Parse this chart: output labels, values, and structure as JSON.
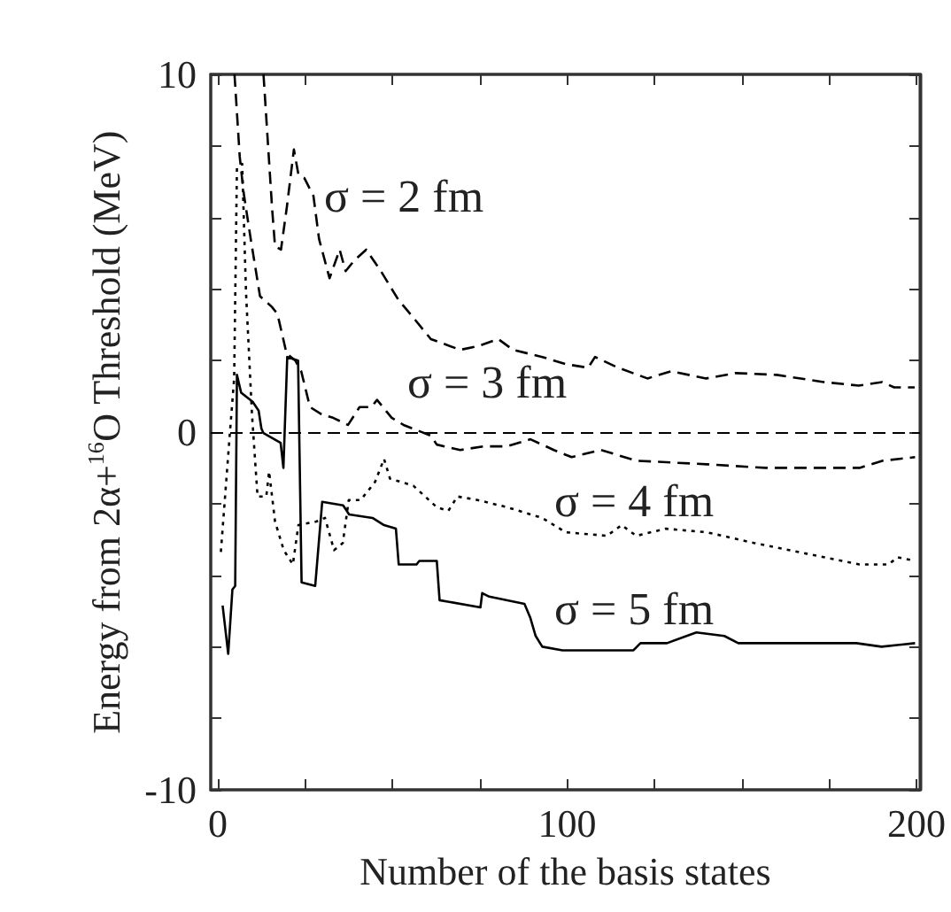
{
  "chart_data": {
    "type": "line",
    "xlabel": "Number of the basis states",
    "ylabel": "Energy from 2α+$^{16}$O Threshold (MeV)",
    "xlim": [
      -2,
      201
    ],
    "ylim": [
      -10,
      10
    ],
    "xticks": [
      0,
      {
        "value": 25,
        "label": null
      },
      {
        "value": 50,
        "label": null
      },
      {
        "value": 75,
        "label": null
      },
      100,
      {
        "value": 125,
        "label": null
      },
      {
        "value": 150,
        "label": null
      },
      {
        "value": 175,
        "label": null
      },
      200
    ],
    "yticks": [
      -10,
      {
        "value": -8,
        "label": null
      },
      {
        "value": -6,
        "label": null
      },
      {
        "value": -4,
        "label": null
      },
      {
        "value": -2,
        "label": null
      },
      0,
      {
        "value": 2,
        "label": null
      },
      {
        "value": 4,
        "label": null
      },
      {
        "value": 6,
        "label": null
      },
      {
        "value": 8,
        "label": null
      },
      10
    ],
    "grid": false,
    "marker": "none",
    "ref_lines": [
      {
        "axis": "y",
        "value": 0,
        "line_style": "dashed",
        "color": "#000000"
      }
    ],
    "annotations": [
      "σ = 2 fm",
      "σ = 3 fm",
      "σ = 4 fm",
      "σ = 5 fm"
    ],
    "series": [
      {
        "color": "#000000",
        "line_style": "dashed",
        "x": [
          13.1,
          15.6,
          16.4,
          18.1,
          19.8,
          21.8,
          23.1,
          24.8,
          27.4,
          29,
          32,
          34.9,
          36.6,
          39.1,
          42.5,
          46.7,
          51.7,
          56,
          61,
          69.4,
          74.4,
          80.3,
          84.5,
          92.9,
          99.6,
          106,
          108,
          114.6,
          123,
          129.7,
          139.8,
          148.2,
          160,
          173.4,
          183.5,
          190.2,
          193.6,
          199.5
        ],
        "values": [
          10,
          6.2,
          5.2,
          5.1,
          6.3,
          7.9,
          7.2,
          7.1,
          6.6,
          5.4,
          4.3,
          5.1,
          4.5,
          4.8,
          5.1,
          4.5,
          3.7,
          3.2,
          2.6,
          2.3,
          2.4,
          2.6,
          2.3,
          2.1,
          1.9,
          1.8,
          2.1,
          1.8,
          1.5,
          1.7,
          1.5,
          1.65,
          1.6,
          1.4,
          1.3,
          1.4,
          1.25,
          1.25
        ]
      },
      {
        "color": "#000000",
        "line_style": "dashed",
        "x": [
          4.8,
          6.3,
          7.4,
          9.6,
          12.1,
          15.5,
          17.1,
          19.7,
          22.2,
          23.9,
          26.4,
          29.7,
          33,
          37.3,
          40.6,
          44,
          45.6,
          49.8,
          53.2,
          61,
          62.7,
          69.4,
          76.1,
          82.8,
          89.5,
          96.2,
          101.3,
          109.7,
          119.8,
          140,
          156.8,
          173.6,
          183.7,
          190.4,
          199.6
        ],
        "values": [
          10,
          7.7,
          6.7,
          5.3,
          3.8,
          3.5,
          3.3,
          2.2,
          2,
          1.7,
          0.7,
          0.5,
          0.4,
          0.2,
          0.7,
          0.7,
          0.9,
          0.4,
          0.2,
          -0.1,
          -0.35,
          -0.5,
          -0.4,
          -0.4,
          -0.2,
          -0.5,
          -0.7,
          -0.5,
          -0.8,
          -0.9,
          -1,
          -1,
          -1,
          -0.8,
          -0.7
        ]
      },
      {
        "color": "#000000",
        "line_style": "dotted",
        "x": [
          0.9,
          3.5,
          4.7,
          5.5,
          7,
          8.1,
          9.8,
          11.4,
          13.9,
          14.7,
          16.4,
          18.9,
          21.5,
          23.1,
          28.2,
          30.7,
          33.3,
          35.8,
          37.5,
          40.9,
          45,
          47.6,
          49.3,
          56,
          62.7,
          66,
          68.6,
          74.4,
          82.8,
          92.9,
          99.6,
          111.4,
          115.6,
          119.8,
          128.2,
          140,
          153.5,
          168.6,
          183.7,
          192,
          194.6,
          199.6
        ],
        "values": [
          -3.35,
          0,
          1.5,
          7.4,
          7.5,
          3.9,
          0.5,
          -1.8,
          -1.8,
          -1.1,
          -2.5,
          -3.3,
          -3.7,
          -2.6,
          -2.5,
          -2.4,
          -3.3,
          -3.1,
          -1.9,
          -1.9,
          -1.4,
          -0.75,
          -1.3,
          -1.5,
          -2.1,
          -2.2,
          -1.8,
          -1.9,
          -2.1,
          -2.4,
          -2.8,
          -2.9,
          -2.6,
          -2.9,
          -2.7,
          -2.8,
          -3.1,
          -3.4,
          -3.7,
          -3.7,
          -3.5,
          -3.6
        ]
      },
      {
        "color": "#000000",
        "line_style": "solid",
        "x": [
          1.4,
          3,
          4.2,
          5,
          5.5,
          6.7,
          10,
          11.7,
          12.5,
          13.1,
          18,
          18.8,
          19.9,
          23,
          24,
          27.9,
          29.9,
          35.9,
          37.6,
          44.3,
          47.6,
          51,
          51.8,
          56.9,
          57.7,
          62.7,
          63.5,
          75.2,
          75.7,
          77.7,
          87.8,
          89.5,
          91,
          92.9,
          98.7,
          119,
          121,
          128.6,
          137,
          145,
          149,
          166,
          182.8,
          190,
          199.6
        ],
        "values": [
          -4.85,
          -6.2,
          -4.4,
          -4.3,
          1.6,
          1.1,
          0.85,
          0.6,
          0.1,
          -0.03,
          -0.3,
          -1,
          2.1,
          2,
          -4.2,
          -4.3,
          -1.95,
          -2.05,
          -2.3,
          -2.4,
          -2.6,
          -2.7,
          -3.7,
          -3.7,
          -3.6,
          -3.6,
          -4.7,
          -4.9,
          -4.5,
          -4.6,
          -4.8,
          -5.2,
          -5.7,
          -6,
          -6.1,
          -6.1,
          -5.9,
          -5.9,
          -5.6,
          -5.7,
          -5.9,
          -5.9,
          -5.9,
          -6,
          -5.9
        ]
      }
    ]
  }
}
